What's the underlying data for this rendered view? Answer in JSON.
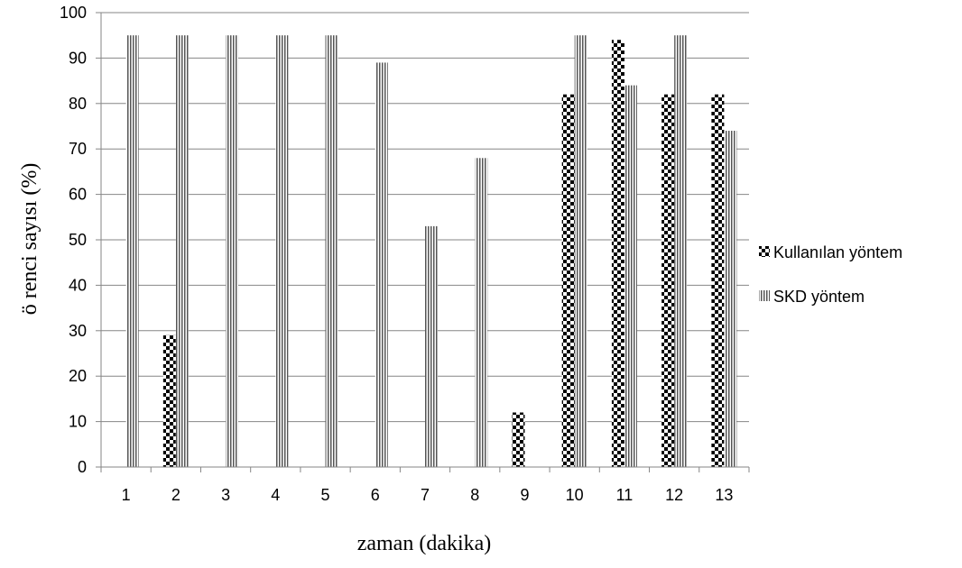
{
  "chart_data": {
    "type": "bar",
    "title": "",
    "xlabel": "zaman (dakika)",
    "ylabel": "ö  renci sayısı (%)",
    "categories": [
      "1",
      "2",
      "3",
      "4",
      "5",
      "6",
      "7",
      "8",
      "9",
      "10",
      "11",
      "12",
      "13"
    ],
    "series": [
      {
        "name": "Kullanılan yöntem",
        "values": [
          0,
          29,
          0,
          0,
          0,
          0,
          0,
          0,
          12,
          82,
          94,
          82,
          82
        ],
        "pattern": "checkerboard"
      },
      {
        "name": "SKD yöntem",
        "values": [
          95,
          95,
          95,
          95,
          95,
          89,
          53,
          68,
          0,
          95,
          84,
          95,
          74
        ],
        "pattern": "vertical-stripes"
      }
    ],
    "yticks": [
      "0",
      "10",
      "20",
      "30",
      "40",
      "50",
      "60",
      "70",
      "80",
      "90",
      "100"
    ],
    "ylim": [
      0,
      100
    ],
    "grid": true,
    "legend": "right",
    "colors": {
      "axis": "#868686",
      "grid": "#868686",
      "ink": "#000000",
      "background": "#ffffff"
    }
  }
}
